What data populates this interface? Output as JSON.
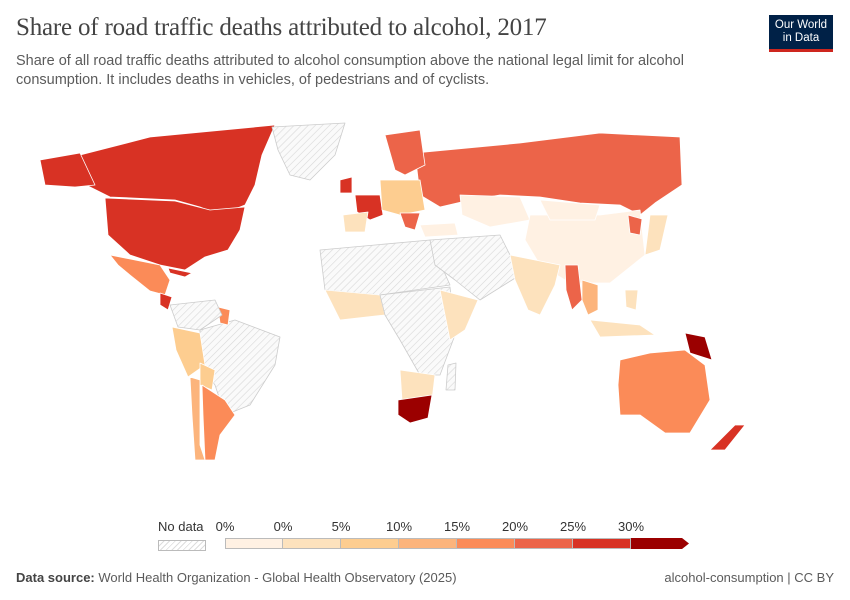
{
  "header": {
    "title": "Share of road traffic deaths attributed to alcohol, 2017",
    "subtitle": "Share of all road traffic deaths attributed to alcohol consumption above the national legal limit for alcohol consumption. It includes deaths in vehicles, of pedestrians and of cyclists.",
    "logo": "Our World in Data"
  },
  "legend": {
    "no_data": "No data",
    "ticks": [
      "0%",
      "0%",
      "5%",
      "10%",
      "15%",
      "20%",
      "25%",
      "30%"
    ],
    "colors": [
      "#fff1e3",
      "#fde2bd",
      "#fdcd90",
      "#fcb47c",
      "#fb8b58",
      "#ec6449",
      "#d83224",
      "#9b0000"
    ],
    "no_data_color": "#eeeeee"
  },
  "chart_data": {
    "type": "choropleth",
    "year": 2017,
    "unit": "%",
    "bins": [
      [
        0,
        0
      ],
      [
        0,
        5
      ],
      [
        5,
        10
      ],
      [
        10,
        15
      ],
      [
        15,
        20
      ],
      [
        20,
        25
      ],
      [
        25,
        30
      ],
      [
        30,
        null
      ]
    ],
    "regions": [
      {
        "id": "canada",
        "bin": 6
      },
      {
        "id": "usa",
        "bin": 6
      },
      {
        "id": "alaska",
        "bin": 6
      },
      {
        "id": "greenland",
        "bin": null
      },
      {
        "id": "mexico",
        "bin": 4
      },
      {
        "id": "cuba",
        "bin": 6
      },
      {
        "id": "central-america",
        "bin": 6
      },
      {
        "id": "brazil",
        "bin": null
      },
      {
        "id": "peru",
        "bin": 2
      },
      {
        "id": "bolivia",
        "bin": 2
      },
      {
        "id": "chile",
        "bin": 3
      },
      {
        "id": "argentina",
        "bin": 4
      },
      {
        "id": "guyana",
        "bin": 4
      },
      {
        "id": "colombia-venezuela",
        "bin": null
      },
      {
        "id": "russia",
        "bin": 5
      },
      {
        "id": "scandinavia",
        "bin": 5
      },
      {
        "id": "uk-ireland",
        "bin": 6
      },
      {
        "id": "france",
        "bin": 6
      },
      {
        "id": "iberia",
        "bin": 1
      },
      {
        "id": "central-europe",
        "bin": 2
      },
      {
        "id": "balkans",
        "bin": 5
      },
      {
        "id": "turkey",
        "bin": 0
      },
      {
        "id": "north-africa",
        "bin": null
      },
      {
        "id": "west-africa",
        "bin": 1
      },
      {
        "id": "central-africa",
        "bin": null
      },
      {
        "id": "east-africa",
        "bin": 1
      },
      {
        "id": "southern-africa",
        "bin": 1
      },
      {
        "id": "south-africa",
        "bin": 7
      },
      {
        "id": "madagascar",
        "bin": null
      },
      {
        "id": "middle-east",
        "bin": null
      },
      {
        "id": "kazakhstan",
        "bin": 0
      },
      {
        "id": "china",
        "bin": 0
      },
      {
        "id": "mongolia",
        "bin": 0
      },
      {
        "id": "india",
        "bin": 1
      },
      {
        "id": "myanmar",
        "bin": 5
      },
      {
        "id": "thailand",
        "bin": 3
      },
      {
        "id": "japan",
        "bin": 1
      },
      {
        "id": "korea",
        "bin": 5
      },
      {
        "id": "indonesia",
        "bin": 1
      },
      {
        "id": "philippines",
        "bin": 1
      },
      {
        "id": "australia",
        "bin": 4
      },
      {
        "id": "new-zealand",
        "bin": 6
      },
      {
        "id": "papua-new-guinea",
        "bin": 7
      }
    ]
  },
  "footer": {
    "source_label": "Data source:",
    "source": "World Health Organization - Global Health Observatory (2025)",
    "right": "alcohol-consumption | CC BY"
  }
}
